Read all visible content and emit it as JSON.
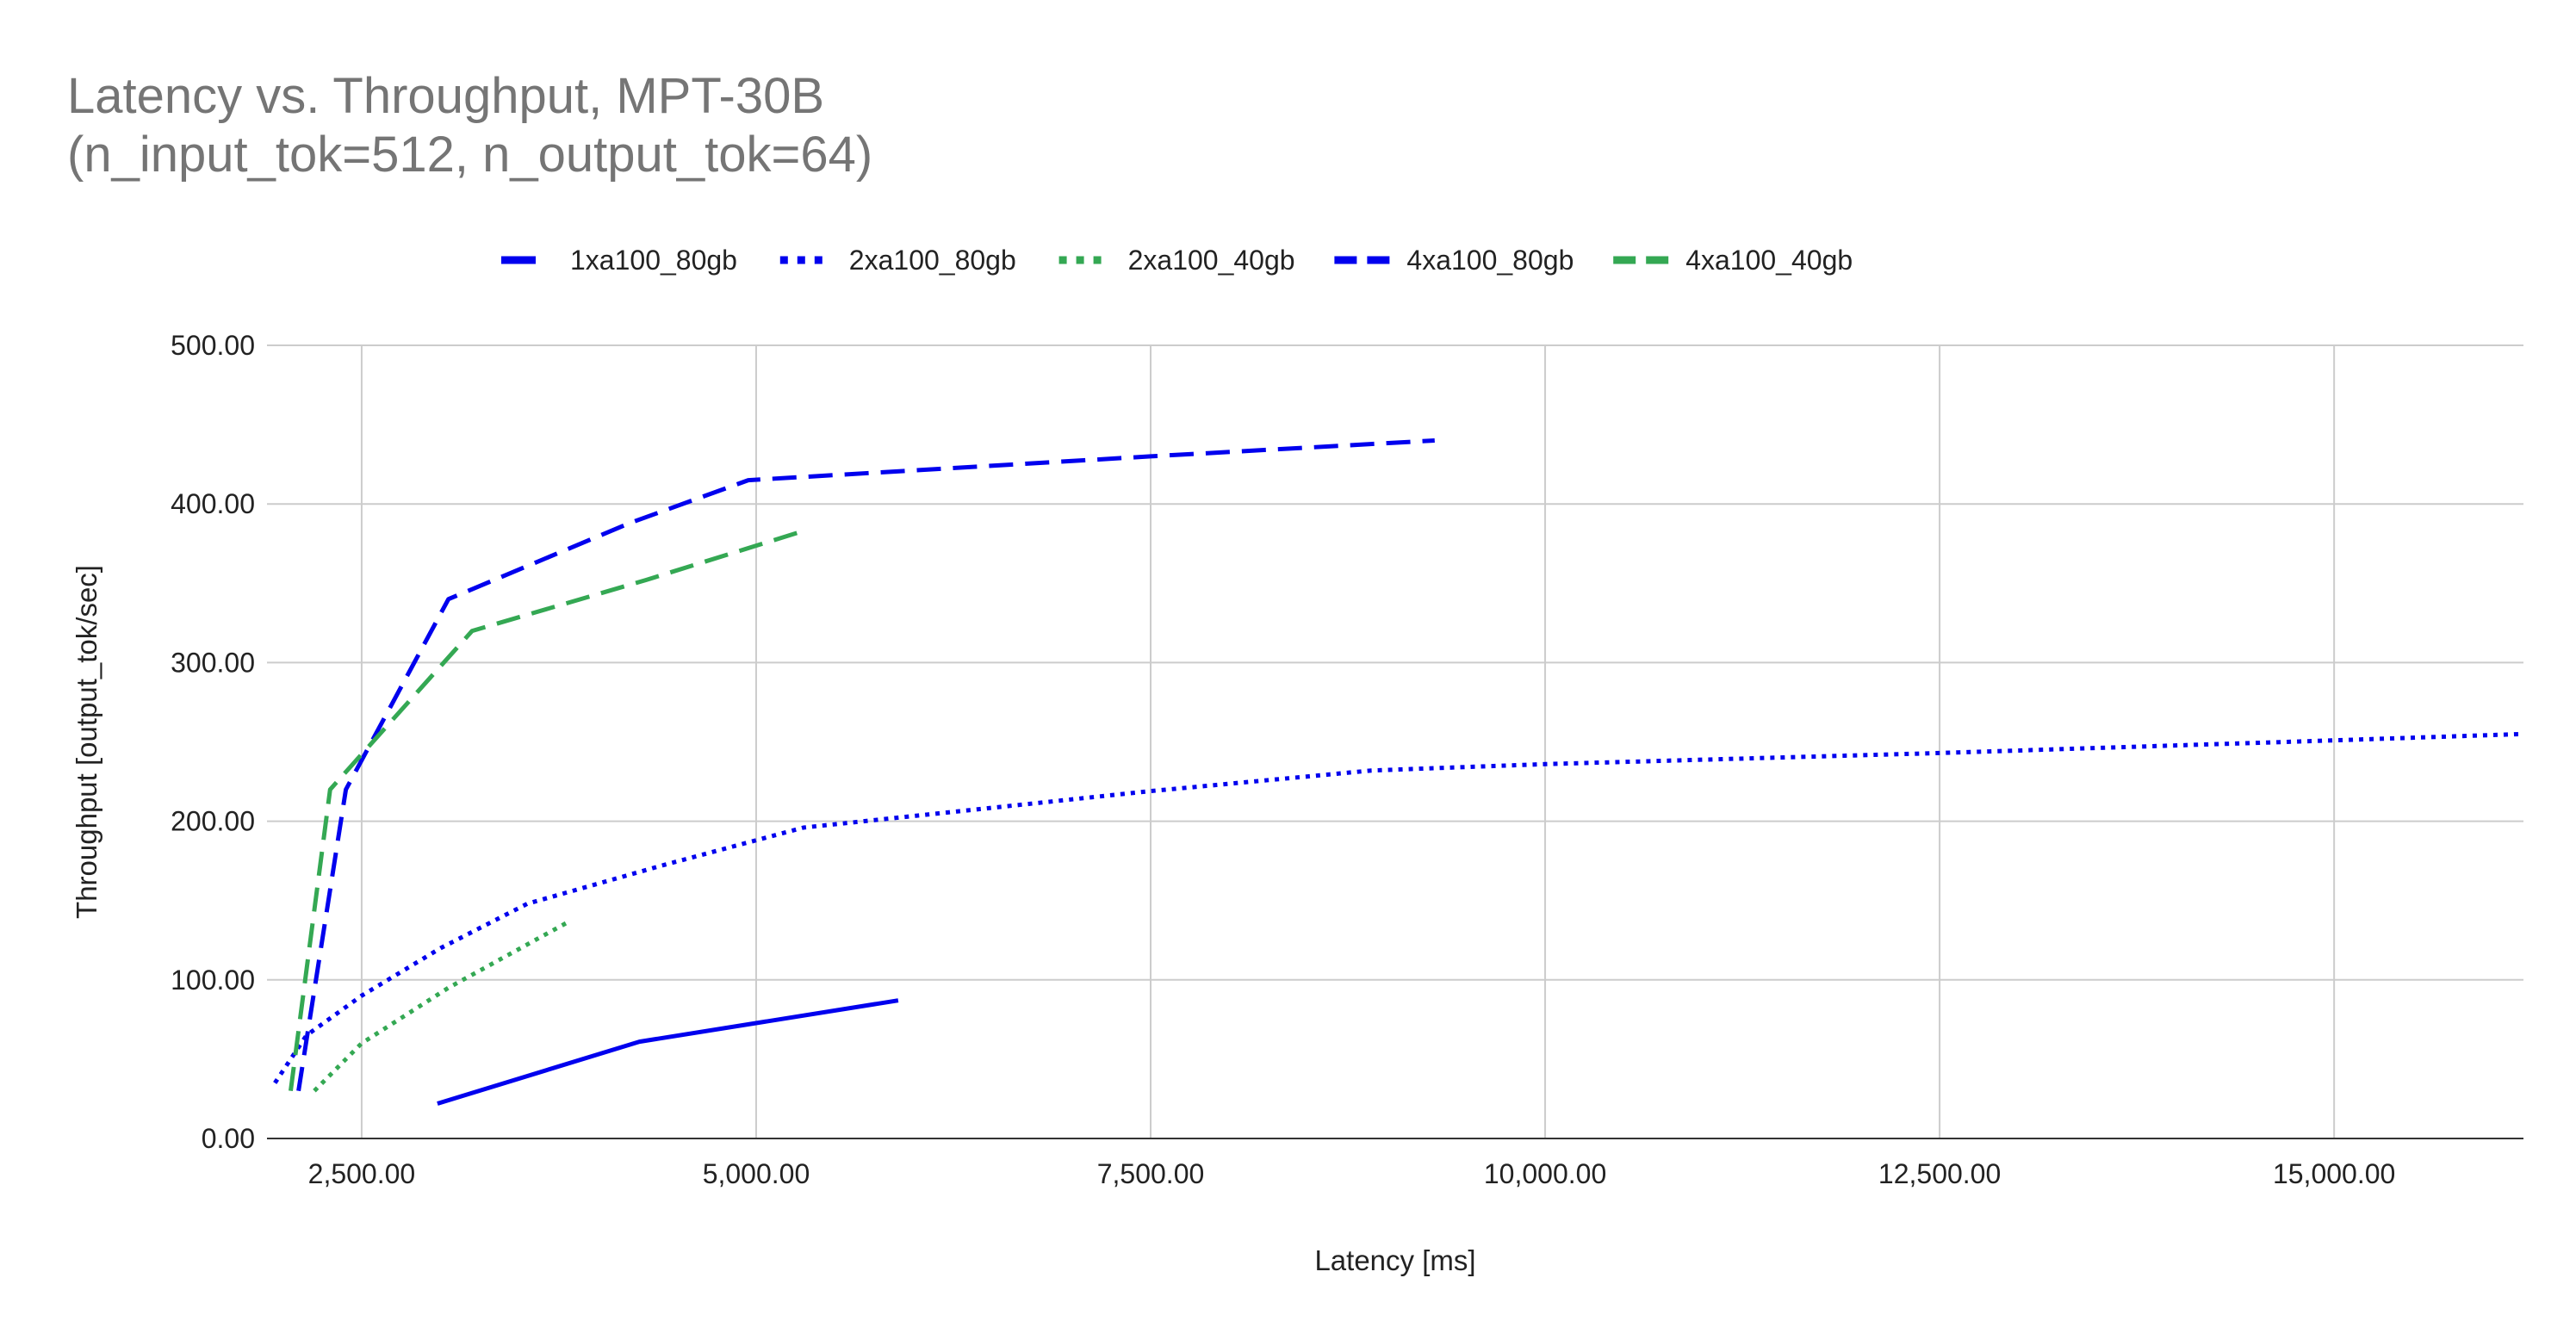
{
  "chart_data": {
    "type": "line",
    "title": "Latency vs. Throughput, MPT-30B\n(n_input_tok=512, n_output_tok=64)",
    "xlabel": "Latency [ms]",
    "ylabel": "Throughput [output_tok/sec]",
    "xlim": [
      1900,
      16200
    ],
    "ylim": [
      0,
      500
    ],
    "xticks": [
      2500,
      5000,
      7500,
      10000,
      12500,
      15000
    ],
    "xtick_labels": [
      "2,500.00",
      "5,000.00",
      "7,500.00",
      "10,000.00",
      "12,500.00",
      "15,000.00"
    ],
    "yticks": [
      0,
      100,
      200,
      300,
      400,
      500
    ],
    "ytick_labels": [
      "0.00",
      "100.00",
      "200.00",
      "300.00",
      "400.00",
      "500.00"
    ],
    "grid": true,
    "legend_position": "top",
    "series": [
      {
        "name": "1xa100_80gb",
        "color": "#0000ee",
        "dash": "solid",
        "points": [
          [
            2980,
            22
          ],
          [
            4260,
            61
          ],
          [
            5900,
            87
          ]
        ]
      },
      {
        "name": "2xa100_80gb",
        "color": "#0000ee",
        "dash": "dotted",
        "points": [
          [
            1950,
            35
          ],
          [
            2150,
            65
          ],
          [
            2500,
            90
          ],
          [
            3000,
            120
          ],
          [
            3550,
            148
          ],
          [
            4400,
            172
          ],
          [
            5300,
            196
          ],
          [
            7500,
            219
          ],
          [
            8900,
            232
          ],
          [
            10000,
            236
          ],
          [
            12500,
            243
          ],
          [
            15000,
            251
          ],
          [
            16200,
            255
          ]
        ]
      },
      {
        "name": "2xa100_40gb",
        "color": "#34a853",
        "dash": "dotted",
        "points": [
          [
            2200,
            30
          ],
          [
            2500,
            60
          ],
          [
            3050,
            95
          ],
          [
            3800,
            136
          ]
        ]
      },
      {
        "name": "4xa100_80gb",
        "color": "#0000ee",
        "dash": "dashed",
        "points": [
          [
            2100,
            30
          ],
          [
            2400,
            220
          ],
          [
            3050,
            340
          ],
          [
            4200,
            388
          ],
          [
            4950,
            415
          ],
          [
            7500,
            430
          ],
          [
            9300,
            440
          ]
        ]
      },
      {
        "name": "4xa100_40gb",
        "color": "#34a853",
        "dash": "dashed",
        "points": [
          [
            2050,
            30
          ],
          [
            2300,
            220
          ],
          [
            3200,
            320
          ],
          [
            4300,
            352
          ],
          [
            5300,
            383
          ]
        ]
      }
    ]
  }
}
